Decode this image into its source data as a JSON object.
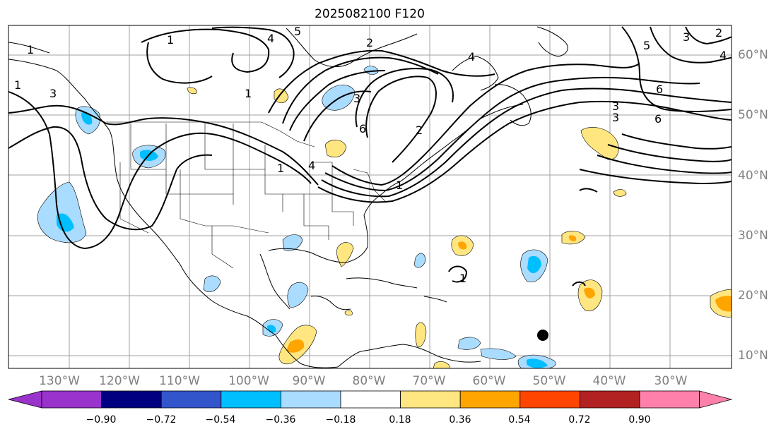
{
  "title": "2025082100 F120",
  "lon_labels": [
    "130°W",
    "120°W",
    "110°W",
    "100°W",
    "90°W",
    "80°W",
    "70°W",
    "60°W",
    "50°W",
    "40°W",
    "30°W"
  ],
  "lat_labels": [
    "60°N",
    "50°N",
    "40°N",
    "30°N",
    "20°N",
    "10°N"
  ],
  "colorbar": {
    "ticks": [
      "−0.90",
      "−0.72",
      "−0.54",
      "−0.36",
      "−0.18",
      "0.18",
      "0.36",
      "0.54",
      "0.72",
      "0.90"
    ],
    "colors": [
      "#9933cc",
      "#000080",
      "#3355cc",
      "#00bfff",
      "#aadcff",
      "#ffffff",
      "#ffe680",
      "#ffa500",
      "#ff4500",
      "#b22222",
      "#ff80aa"
    ]
  },
  "contour_labels": [
    "1",
    "1",
    "1",
    "3",
    "4",
    "5",
    "2",
    "1",
    "3",
    "4",
    "6",
    "5",
    "3",
    "4",
    "6",
    "3",
    "6",
    "3",
    "2",
    "1",
    "4",
    "2",
    "1",
    "1"
  ],
  "colors": {
    "contour": "#000000",
    "coast": "#000000",
    "grid": "#a0a0a0"
  }
}
